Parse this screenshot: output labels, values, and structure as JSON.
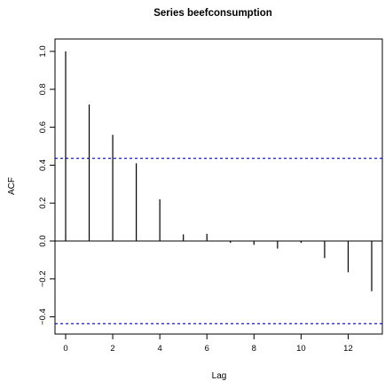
{
  "chart_data": {
    "type": "bar",
    "title": "Series  beefconsumption",
    "xlabel": "Lag",
    "ylabel": "ACF",
    "x": [
      0,
      1,
      2,
      3,
      4,
      5,
      6,
      7,
      8,
      9,
      10,
      11,
      12,
      13
    ],
    "values": [
      1.0,
      0.72,
      0.56,
      0.41,
      0.22,
      0.035,
      0.038,
      -0.01,
      -0.02,
      -0.04,
      -0.01,
      -0.09,
      -0.165,
      -0.265
    ],
    "xlim": [
      0,
      13
    ],
    "ylim": [
      -0.44,
      1.0
    ],
    "x_ticks": [
      "0",
      "2",
      "4",
      "6",
      "8",
      "10",
      "12"
    ],
    "y_ticks": [
      "−0.4",
      "−0.2",
      "0.0",
      "0.2",
      "0.4",
      "0.6",
      "0.8",
      "1.0"
    ],
    "confidence_band": 0.436,
    "grid": false,
    "colors": {
      "lines": "#000000",
      "confidence": "#0000cc",
      "panel_border": "#000000"
    }
  }
}
